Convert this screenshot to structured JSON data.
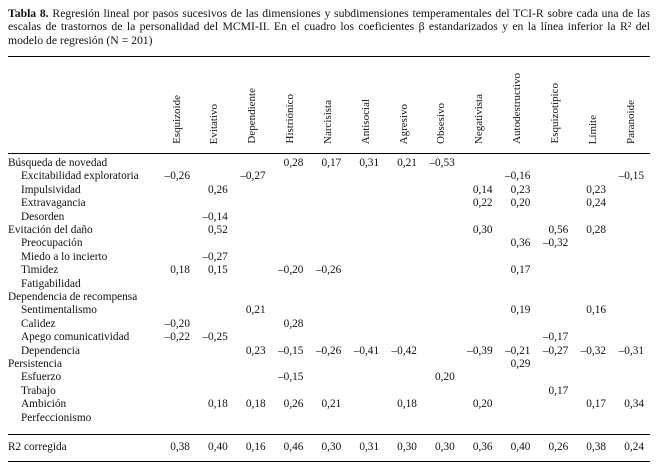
{
  "caption": {
    "label": "Tabla 8.",
    "text": " Regresión lineal por pasos sucesivos de las dimensiones y subdimensiones temperamentales del TCI-R sobre cada una de las escalas de trastornos de la personalidad del MCMI-II. En el cuadro los coeficientes β estandarizados y en la línea inferior la R² del modelo de regresión (N = 201)"
  },
  "table": {
    "columns": [
      "Esquizoide",
      "Evitativo",
      "Dependiente",
      "Histriónico",
      "Narcisista",
      "Antisocial",
      "Agresivo",
      "Obsesivo",
      "Negativista",
      "Autodestructivo",
      "Esquizotípico",
      "Límite",
      "Paranoide"
    ],
    "rows": [
      {
        "label": "Búsqueda de novedad",
        "indent": false,
        "values": [
          "",
          "",
          "",
          "0,28",
          "0,17",
          "0,31",
          "0,21",
          "–0,53",
          "",
          "",
          "",
          "",
          ""
        ]
      },
      {
        "label": "Excitabilidad exploratoria",
        "indent": true,
        "values": [
          "–0,26",
          "",
          "–0,27",
          "",
          "",
          "",
          "",
          "",
          "",
          "–0,16",
          "",
          "",
          "–0,15"
        ]
      },
      {
        "label": "Impulsividad",
        "indent": true,
        "values": [
          "",
          "0,26",
          "",
          "",
          "",
          "",
          "",
          "",
          "0,14",
          "0,23",
          "",
          "0,23",
          ""
        ]
      },
      {
        "label": "Extravagancia",
        "indent": true,
        "values": [
          "",
          "",
          "",
          "",
          "",
          "",
          "",
          "",
          "0,22",
          "0,20",
          "",
          "0,24",
          ""
        ]
      },
      {
        "label": "Desorden",
        "indent": true,
        "values": [
          "",
          "–0,14",
          "",
          "",
          "",
          "",
          "",
          "",
          "",
          "",
          "",
          "",
          ""
        ]
      },
      {
        "label": "Evitación del daño",
        "indent": false,
        "values": [
          "",
          "0,52",
          "",
          "",
          "",
          "",
          "",
          "",
          "0,30",
          "",
          "0,56",
          "0,28",
          ""
        ]
      },
      {
        "label": "Preocupación",
        "indent": true,
        "values": [
          "",
          "",
          "",
          "",
          "",
          "",
          "",
          "",
          "",
          "0,36",
          "–0,32",
          "",
          ""
        ]
      },
      {
        "label": "Miedo a lo incierto",
        "indent": true,
        "values": [
          "",
          "–0,27",
          "",
          "",
          "",
          "",
          "",
          "",
          "",
          "",
          "",
          "",
          ""
        ]
      },
      {
        "label": "Timidez",
        "indent": true,
        "values": [
          "0,18",
          "0,15",
          "",
          "–0,20",
          "–0,26",
          "",
          "",
          "",
          "",
          "0,17",
          "",
          "",
          ""
        ]
      },
      {
        "label": "Fatigabilidad",
        "indent": true,
        "values": [
          "",
          "",
          "",
          "",
          "",
          "",
          "",
          "",
          "",
          "",
          "",
          "",
          ""
        ]
      },
      {
        "label": "Dependencia de recompensa",
        "indent": false,
        "values": [
          "",
          "",
          "",
          "",
          "",
          "",
          "",
          "",
          "",
          "",
          "",
          "",
          ""
        ]
      },
      {
        "label": "Sentimentalismo",
        "indent": true,
        "values": [
          "",
          "",
          "0,21",
          "",
          "",
          "",
          "",
          "",
          "",
          "0,19",
          "",
          "0,16",
          ""
        ]
      },
      {
        "label": "Calidez",
        "indent": true,
        "values": [
          "–0,20",
          "",
          "",
          "0,28",
          "",
          "",
          "",
          "",
          "",
          "",
          "",
          "",
          ""
        ]
      },
      {
        "label": "Apego comunicatividad",
        "indent": true,
        "values": [
          "–0,22",
          "–0,25",
          "",
          "",
          "",
          "",
          "",
          "",
          "",
          "",
          "–0,17",
          "",
          ""
        ]
      },
      {
        "label": "Dependencia",
        "indent": true,
        "values": [
          "",
          "",
          "0,23",
          "–0,15",
          "–0,26",
          "–0,41",
          "–0,42",
          "",
          "–0,39",
          "–0,21",
          "–0,27",
          "–0,32",
          "–0,31"
        ]
      },
      {
        "label": "Persistencia",
        "indent": false,
        "values": [
          "",
          "",
          "",
          "",
          "",
          "",
          "",
          "",
          "",
          "0,29",
          "",
          "",
          ""
        ]
      },
      {
        "label": "Esfuerzo",
        "indent": true,
        "values": [
          "",
          "",
          "",
          "–0,15",
          "",
          "",
          "",
          "0,20",
          "",
          "",
          "",
          "",
          ""
        ]
      },
      {
        "label": "Trabajo",
        "indent": true,
        "values": [
          "",
          "",
          "",
          "",
          "",
          "",
          "",
          "",
          "",
          "",
          "0,17",
          "",
          ""
        ]
      },
      {
        "label": "Ambición",
        "indent": true,
        "values": [
          "",
          "0,18",
          "0,18",
          "0,26",
          "0,21",
          "",
          "0,18",
          "",
          "0,20",
          "",
          "",
          "0,17",
          "0,34"
        ]
      },
      {
        "label": "Perfeccionismo",
        "indent": true,
        "values": [
          "",
          "",
          "",
          "",
          "",
          "",
          "",
          "",
          "",
          "",
          "",
          "",
          ""
        ]
      }
    ],
    "footer": {
      "label": "R2 corregida",
      "values": [
        "0,38",
        "0,40",
        "0,16",
        "0,46",
        "0,30",
        "0,31",
        "0,30",
        "0,30",
        "0,36",
        "0,40",
        "0,26",
        "0,38",
        "0,24"
      ]
    }
  }
}
